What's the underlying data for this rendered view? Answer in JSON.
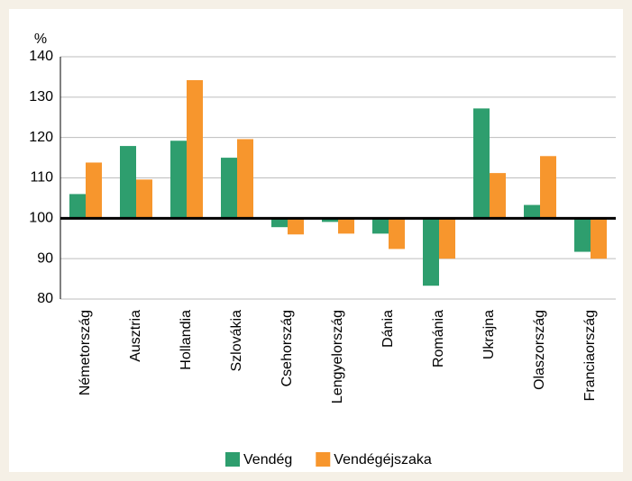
{
  "chart_data": {
    "type": "bar",
    "y_label": "%",
    "categories": [
      "Németország",
      "Ausztria",
      "Hollandia",
      "Szlovákia",
      "Csehország",
      "Lengyelország",
      "Dánia",
      "Románia",
      "Ukrajna",
      "Olaszország",
      "Franciaország"
    ],
    "series": [
      {
        "name": "Vendég",
        "color": "#2e9e6e",
        "values": [
          106,
          117.9,
          119.2,
          115,
          97.8,
          99.1,
          96.2,
          83.3,
          127.2,
          103.3,
          91.7
        ]
      },
      {
        "name": "Vendégéjszaka",
        "color": "#f7962d",
        "values": [
          113.8,
          109.6,
          134.2,
          119.6,
          96,
          96.2,
          92.4,
          90,
          111.2,
          115.4,
          90
        ]
      }
    ],
    "ylim": [
      80,
      140
    ],
    "yticks": [
      80,
      90,
      100,
      110,
      120,
      130,
      140
    ],
    "baseline": 100,
    "grid": true,
    "legend": "bottom"
  }
}
